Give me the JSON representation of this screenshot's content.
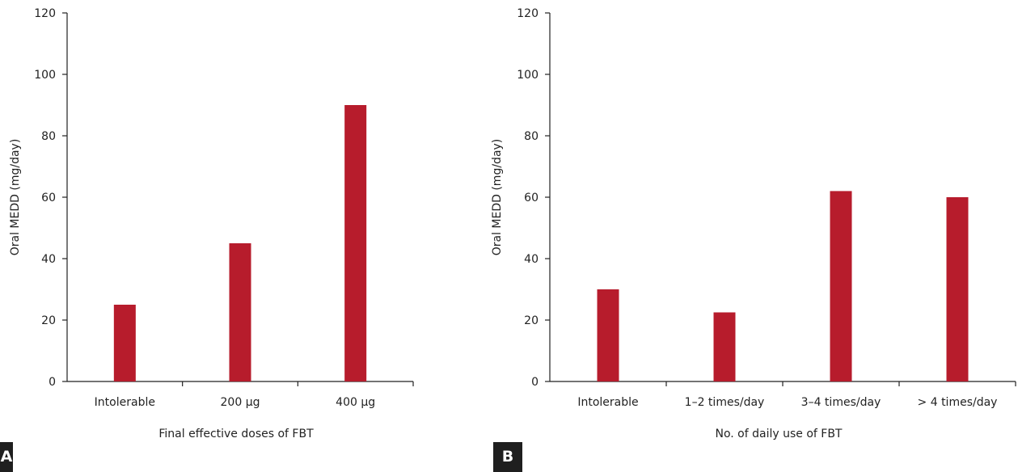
{
  "chart_data": [
    {
      "type": "bar",
      "panel": "A",
      "categories": [
        "Intolerable",
        "200 μg",
        "400 μg"
      ],
      "values": [
        25,
        45,
        90
      ],
      "xlabel": "Final effective doses of FBT",
      "ylabel": "Oral MEDD (mg/day)",
      "ylim": [
        0,
        120
      ],
      "yticks": [
        0,
        20,
        40,
        60,
        80,
        100,
        120
      ],
      "bar_color": "#b71c2c",
      "grid": false
    },
    {
      "type": "bar",
      "panel": "B",
      "categories": [
        "Intolerable",
        "1–2 times/day",
        "3–4 times/day",
        "> 4 times/day"
      ],
      "values": [
        30,
        22.5,
        62,
        60
      ],
      "xlabel": "No. of daily use of FBT",
      "ylabel": "Oral MEDD (mg/day)",
      "ylim": [
        0,
        120
      ],
      "yticks": [
        0,
        20,
        40,
        60,
        80,
        100,
        120
      ],
      "bar_color": "#b71c2c",
      "grid": false
    }
  ]
}
